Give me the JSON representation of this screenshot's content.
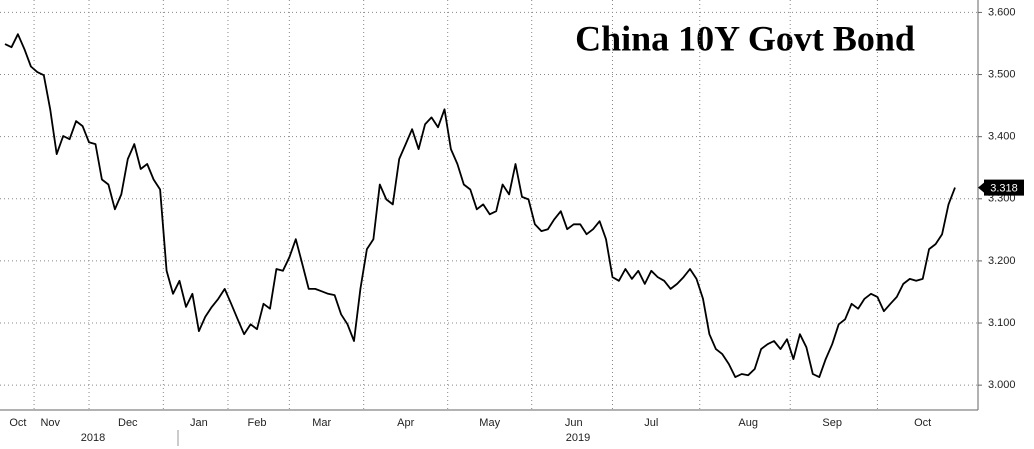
{
  "chart_data": {
    "type": "line",
    "title": "China 10Y Govt Bond",
    "categories": [
      null,
      null,
      "Oct",
      null,
      null,
      null,
      null,
      "Nov",
      null,
      null,
      null,
      null,
      null,
      null,
      null,
      null,
      null,
      null,
      null,
      "Dec",
      null,
      null,
      null,
      null,
      null,
      null,
      null,
      null,
      null,
      null,
      "Jan",
      null,
      null,
      null,
      null,
      null,
      null,
      null,
      null,
      "Feb",
      null,
      null,
      null,
      null,
      null,
      null,
      null,
      null,
      null,
      "Mar",
      null,
      null,
      null,
      null,
      null,
      null,
      null,
      null,
      null,
      null,
      null,
      null,
      "Apr",
      null,
      null,
      null,
      null,
      null,
      null,
      null,
      null,
      null,
      null,
      null,
      null,
      "May",
      null,
      null,
      null,
      null,
      null,
      null,
      null,
      null,
      null,
      null,
      null,
      null,
      "Jun",
      null,
      null,
      null,
      null,
      null,
      null,
      null,
      null,
      null,
      null,
      null,
      "Jul",
      null,
      null,
      null,
      null,
      null,
      null,
      null,
      null,
      null,
      null,
      null,
      null,
      null,
      null,
      "Aug",
      null,
      null,
      null,
      null,
      null,
      null,
      null,
      null,
      null,
      null,
      null,
      null,
      "Sep",
      null,
      null,
      null,
      null,
      null,
      null,
      null,
      null,
      null,
      null,
      null,
      null,
      null,
      "Oct",
      null,
      null,
      null,
      null,
      null
    ],
    "x_group_labels": [
      "2018",
      "2019"
    ],
    "series": [
      {
        "name": "China 10Y Govt Bond yield",
        "color": "#000000",
        "values": [
          3.549,
          3.544,
          3.565,
          3.541,
          3.513,
          3.504,
          3.499,
          3.444,
          3.372,
          3.401,
          3.396,
          3.425,
          3.417,
          3.391,
          3.388,
          3.331,
          3.323,
          3.283,
          3.307,
          3.364,
          3.388,
          3.348,
          3.356,
          3.331,
          3.315,
          3.184,
          3.147,
          3.168,
          3.126,
          3.147,
          3.087,
          3.11,
          3.126,
          3.139,
          3.155,
          3.131,
          3.106,
          3.082,
          3.098,
          3.09,
          3.131,
          3.123,
          3.187,
          3.184,
          3.206,
          3.235,
          3.195,
          3.155,
          3.155,
          3.151,
          3.147,
          3.145,
          3.114,
          3.098,
          3.071,
          3.155,
          3.219,
          3.235,
          3.323,
          3.299,
          3.291,
          3.364,
          3.388,
          3.412,
          3.38,
          3.42,
          3.431,
          3.415,
          3.444,
          3.38,
          3.356,
          3.323,
          3.315,
          3.283,
          3.291,
          3.275,
          3.28,
          3.323,
          3.307,
          3.356,
          3.303,
          3.299,
          3.259,
          3.248,
          3.251,
          3.267,
          3.28,
          3.251,
          3.259,
          3.259,
          3.243,
          3.251,
          3.264,
          3.235,
          3.174,
          3.168,
          3.187,
          3.171,
          3.184,
          3.163,
          3.184,
          3.174,
          3.168,
          3.155,
          3.163,
          3.174,
          3.187,
          3.171,
          3.139,
          3.082,
          3.058,
          3.05,
          3.034,
          3.013,
          3.018,
          3.016,
          3.026,
          3.058,
          3.066,
          3.071,
          3.058,
          3.074,
          3.042,
          3.082,
          3.061,
          3.018,
          3.013,
          3.042,
          3.066,
          3.098,
          3.106,
          3.131,
          3.123,
          3.139,
          3.147,
          3.142,
          3.119,
          3.131,
          3.142,
          3.163,
          3.171,
          3.168,
          3.171,
          3.219,
          3.227,
          3.243,
          3.291,
          3.318
        ]
      }
    ],
    "ylim": [
      2.96,
      3.62
    ],
    "yticks": [
      {
        "value": 3.0,
        "label": "3.000"
      },
      {
        "value": 3.1,
        "label": "3.100"
      },
      {
        "value": 3.2,
        "label": "3.200"
      },
      {
        "value": 3.3,
        "label": "3.300"
      },
      {
        "value": 3.4,
        "label": "3.400"
      },
      {
        "value": 3.5,
        "label": "3.500"
      },
      {
        "value": 3.6,
        "label": "3.600"
      }
    ],
    "grid": true
  }
}
